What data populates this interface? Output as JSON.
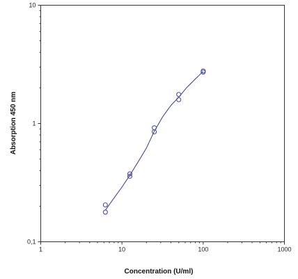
{
  "chart_data": {
    "type": "scatter",
    "title": "",
    "xlabel": "Concentration (U/ml)",
    "ylabel": "Absorption 450 nm",
    "xscale": "log",
    "yscale": "log",
    "xlim": [
      1,
      1000
    ],
    "ylim": [
      0.1,
      10
    ],
    "x_ticks": [
      1,
      10,
      100,
      1000
    ],
    "x_tick_labels": [
      "1",
      "10",
      "100",
      "1000"
    ],
    "y_ticks": [
      0.1,
      1,
      10
    ],
    "y_tick_labels": [
      "0,1",
      "1",
      "10"
    ],
    "grid": false,
    "legend": "none",
    "colors": {
      "points": "#4a4aa8",
      "curve": "#3a3a8a",
      "axes": "#333333"
    },
    "series": [
      {
        "type": "scatter",
        "x": [
          6.25,
          6.25,
          12.5,
          12.5,
          25,
          25,
          50,
          50,
          100,
          100
        ],
        "y": [
          0.205,
          0.178,
          0.375,
          0.358,
          0.92,
          0.85,
          1.76,
          1.59,
          2.78,
          2.72
        ]
      },
      {
        "type": "line",
        "x": [
          6.25,
          8,
          10,
          12.5,
          16,
          20,
          25,
          32,
          40,
          50,
          63,
          80,
          100
        ],
        "y": [
          0.185,
          0.235,
          0.29,
          0.365,
          0.48,
          0.62,
          0.86,
          1.15,
          1.42,
          1.67,
          2.02,
          2.38,
          2.76
        ]
      }
    ]
  }
}
